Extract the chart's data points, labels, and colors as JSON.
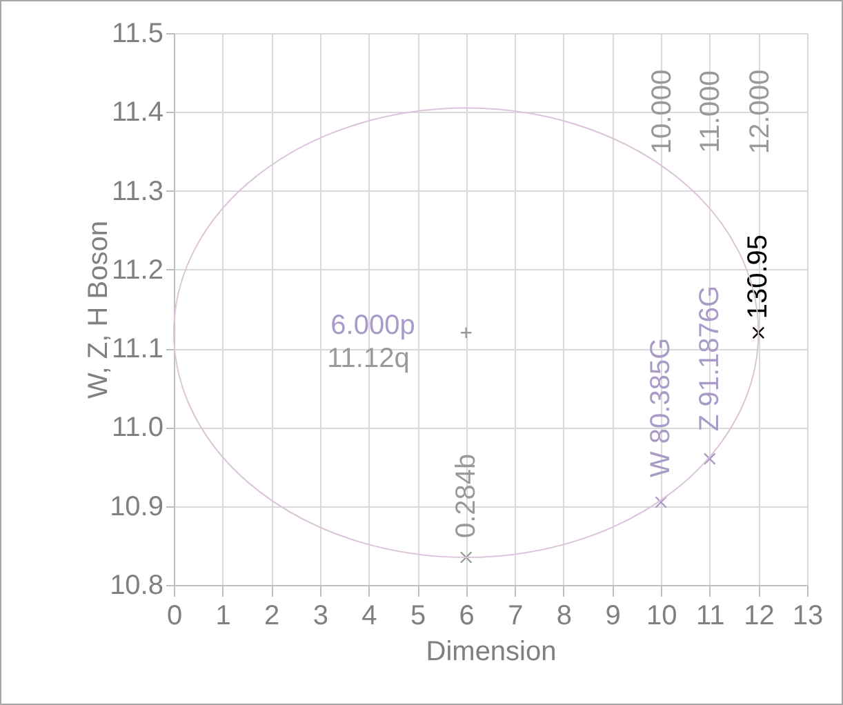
{
  "chart_data": {
    "type": "scatter",
    "xlabel": "Dimension",
    "ylabel": "W, Z, H Boson",
    "xlim": [
      0,
      13
    ],
    "xticks": [
      0,
      1,
      2,
      3,
      4,
      5,
      6,
      7,
      8,
      9,
      10,
      11,
      12,
      13
    ],
    "ylim": [
      10.8,
      11.5
    ],
    "yticks": [
      10.8,
      10.9,
      {
        "value": 11,
        "label": "11.0"
      },
      11.1,
      11.2,
      11.3,
      11.4,
      11.5
    ],
    "grid": true,
    "series": [
      {
        "color": "#999999",
        "marker": "cross",
        "x": [
          6
        ],
        "values": [
          11.12
        ]
      },
      {
        "marker": "x",
        "colors": [
          "#999999",
          "#a99bc8",
          "#a99bc8",
          "#000000"
        ],
        "x": [
          6,
          10,
          11,
          12
        ],
        "values": [
          10.835,
          10.905,
          10.96,
          11.12
        ]
      }
    ],
    "annotations": [
      {
        "text": "6.000p",
        "x": 6,
        "y": 11.12
      },
      {
        "text": "11.12q",
        "x": 6,
        "y": 11.12
      },
      {
        "text": "0.284b",
        "x": 6,
        "y": 10.835
      },
      {
        "text": "W 80.385G",
        "x": 10,
        "y": 10.905
      },
      {
        "text": "Z 91.1876G",
        "x": 11,
        "y": 10.96
      },
      {
        "text": "130.95",
        "x": 12,
        "y": 11.12
      },
      "10.000",
      "11.000",
      "12.000"
    ]
  }
}
